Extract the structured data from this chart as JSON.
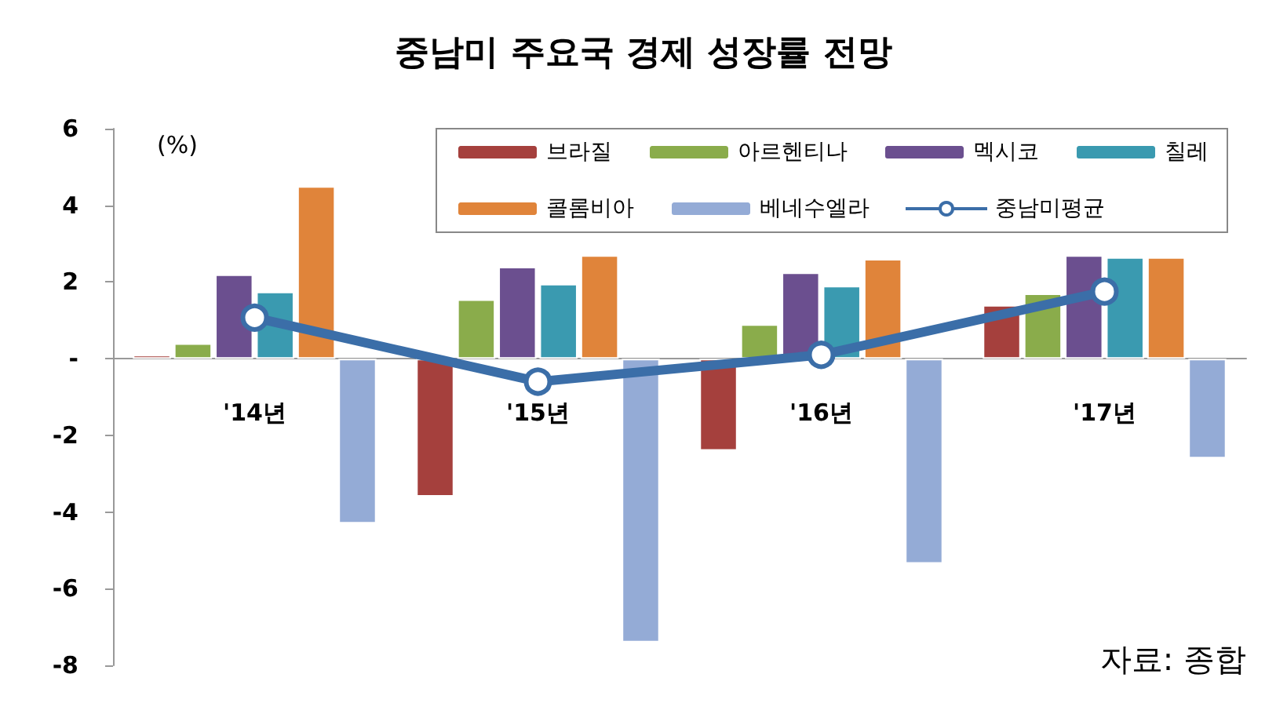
{
  "chart_data": {
    "type": "bar",
    "title": "중남미 주요국 경제 성장률 전망",
    "ylabel": "(%)",
    "categories": [
      "'14년",
      "'15년",
      "'16년",
      "'17년"
    ],
    "series": [
      {
        "name": "브라질",
        "color": "#a5403d",
        "values": [
          0.1,
          -3.6,
          -2.4,
          1.4
        ]
      },
      {
        "name": "아르헨티나",
        "color": "#8aac4b",
        "values": [
          0.4,
          1.55,
          0.9,
          1.7
        ]
      },
      {
        "name": "멕시코",
        "color": "#6b4f8f",
        "values": [
          2.2,
          2.4,
          2.25,
          2.7
        ]
      },
      {
        "name": "칠레",
        "color": "#3a9ab0",
        "values": [
          1.75,
          1.95,
          1.9,
          2.65
        ]
      },
      {
        "name": "콜롬비아",
        "color": "#e0843a",
        "values": [
          4.5,
          2.7,
          2.6,
          2.65
        ]
      },
      {
        "name": "베네수엘라",
        "color": "#94abd6",
        "values": [
          -4.3,
          -7.4,
          -5.35,
          -2.6
        ]
      },
      {
        "name": "중남미평균",
        "type": "line",
        "color": "#3b6ea8",
        "values": [
          1.07,
          -0.6,
          0.1,
          1.75
        ],
        "marker": "circle"
      }
    ],
    "ylim": [
      -8,
      6
    ],
    "yticks": [
      -8,
      -6,
      -4,
      -2,
      {
        "value": 0,
        "label": "-"
      },
      2,
      4,
      6
    ],
    "grid": false,
    "legend": "top right",
    "annotations": [
      "자료: 종합"
    ]
  }
}
